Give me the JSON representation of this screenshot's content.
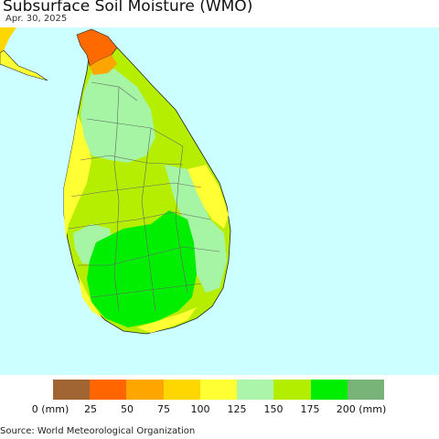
{
  "title": "Subsurface Soil Moisture (WMO)",
  "date": "Apr. 30, 2025",
  "source": "Source: World Meteorological Organization",
  "colors": {
    "ocean": "#ccffff",
    "land_shade_a": "#a5f5a5",
    "land_shade_b": "#b5ee00",
    "land_shade_c": "#00ee00",
    "land_shade_d": "#ffff33",
    "land_shade_e": "#ffd700",
    "land_shade_f": "#ff6a00"
  },
  "legend": {
    "colors": [
      "#a16533",
      "#ff6600",
      "#ffa500",
      "#ffd700",
      "#ffff33",
      "#aaf5aa",
      "#b3ee00",
      "#00ee00",
      "#78b478"
    ],
    "labels": [
      "0 (mm)",
      "25",
      "50",
      "75",
      "100",
      "125",
      "150",
      "175",
      "200 (mm)"
    ]
  }
}
